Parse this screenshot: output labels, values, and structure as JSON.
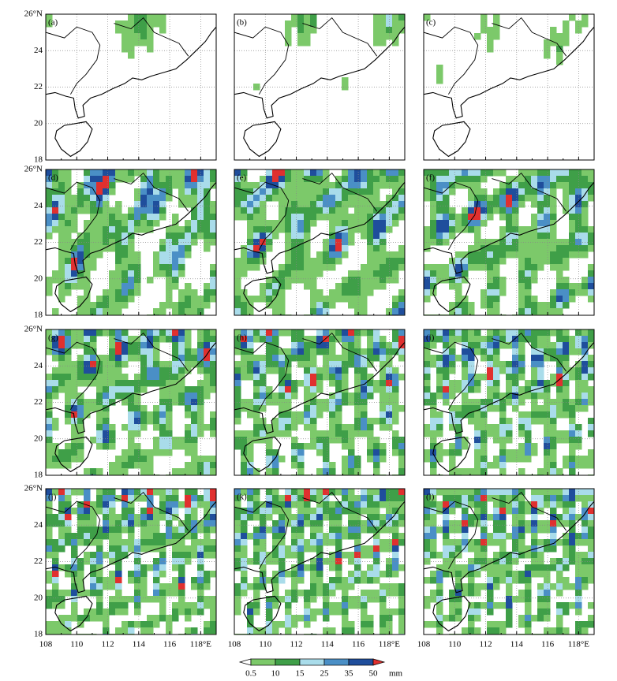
{
  "panels": [
    "(a)",
    "(b)",
    "(c)",
    "(d)",
    "(e)",
    "(f)",
    "(g)",
    "(h)",
    "(i)",
    "(j)",
    "(k)",
    "(l)"
  ],
  "lat_ticks": [
    "26°N",
    "24",
    "22",
    "20",
    "18"
  ],
  "lon_ticks": [
    "108",
    "110",
    "112",
    "114",
    "116",
    "118°E"
  ],
  "colorbar": {
    "labels": [
      "0.5",
      "10",
      "15",
      "25",
      "35",
      "50"
    ],
    "unit": "mm",
    "colors": [
      "#ffffff",
      "#7cc96a",
      "#3f9f48",
      "#a9dcea",
      "#4a8fc6",
      "#1f4e9c",
      "#e0302f"
    ]
  }
}
